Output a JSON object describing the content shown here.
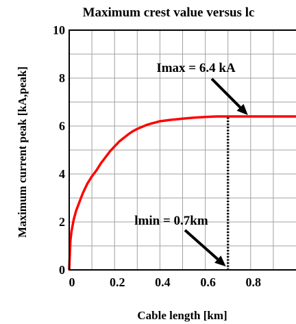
{
  "chart_data": {
    "type": "line",
    "title": "Maximum crest value versus lc",
    "xlabel": "Cable length [km]",
    "ylabel": "Maximum current peak [kA,peak]",
    "xlim": [
      0,
      1.0
    ],
    "ylim": [
      0,
      10
    ],
    "x_ticks": [
      0,
      0.2,
      0.4,
      0.6,
      0.8
    ],
    "x_tick_labels": [
      "0",
      "0.2",
      "0.4",
      "0.6",
      "0.8"
    ],
    "y_ticks": [
      0,
      2,
      4,
      6,
      8,
      10
    ],
    "y_tick_labels": [
      "0",
      "2",
      "4",
      "6",
      "8",
      "10"
    ],
    "grid": true,
    "series": [
      {
        "color": "#ff0000",
        "x": [
          0.0,
          0.005,
          0.01,
          0.02,
          0.03,
          0.04,
          0.05,
          0.06,
          0.07,
          0.08,
          0.09,
          0.1,
          0.12,
          0.14,
          0.16,
          0.18,
          0.2,
          0.22,
          0.24,
          0.26,
          0.28,
          0.3,
          0.32,
          0.34,
          0.36,
          0.38,
          0.4,
          0.45,
          0.5,
          0.55,
          0.6,
          0.65,
          0.7,
          0.75,
          0.8,
          0.85,
          0.9,
          0.95,
          1.0
        ],
        "y": [
          0.0,
          1.2,
          1.6,
          2.1,
          2.45,
          2.7,
          2.95,
          3.2,
          3.4,
          3.6,
          3.75,
          3.9,
          4.15,
          4.45,
          4.7,
          4.95,
          5.15,
          5.35,
          5.5,
          5.65,
          5.78,
          5.88,
          5.96,
          6.04,
          6.1,
          6.15,
          6.2,
          6.26,
          6.31,
          6.35,
          6.38,
          6.4,
          6.4,
          6.4,
          6.4,
          6.4,
          6.4,
          6.4,
          6.4
        ]
      }
    ],
    "annotations": [
      {
        "text": "Imax = 6.4 kA",
        "arrow_to": [
          0.8,
          6.4
        ]
      },
      {
        "text": "lmin = 0.7km",
        "arrow_to": [
          0.7,
          0.0
        ]
      }
    ],
    "marker_line": {
      "x": 0.7,
      "y_from": 0,
      "y_to": 6.4,
      "style": "dotted"
    }
  }
}
